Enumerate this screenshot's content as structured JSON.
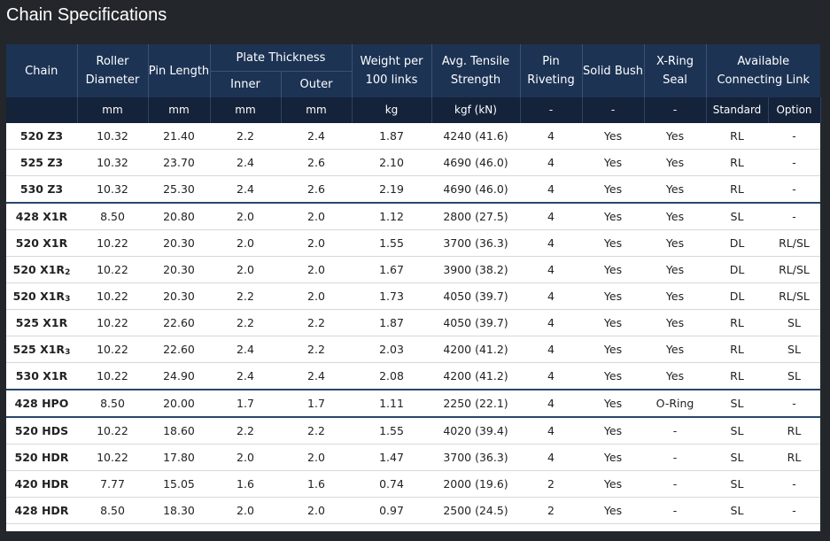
{
  "title": "Chain Specifications",
  "headers": {
    "chain": "Chain",
    "roller_diameter": "Roller Diameter",
    "pin_length": "Pin Length",
    "plate_thickness": "Plate Thickness",
    "inner": "Inner",
    "outer": "Outer",
    "weight": "Weight per 100 links",
    "tensile": "Avg. Tensile Strength",
    "pin_riveting": "Pin Riveting",
    "solid_bush": "Solid Bush",
    "xring_seal": "X-Ring Seal",
    "available_link": "Available Connecting Link"
  },
  "units": [
    "mm",
    "mm",
    "mm",
    "mm",
    "kg",
    "kgf (kN)",
    "-",
    "-",
    "-",
    "Standard",
    "Option"
  ],
  "rows": [
    {
      "name": "520 Z3",
      "sub": "",
      "roller": "10.32",
      "pin": "21.40",
      "inner": "2.2",
      "outer": "2.4",
      "weight": "1.87",
      "tensile": "4240 (41.6)",
      "riveting": "4",
      "bush": "Yes",
      "seal": "Yes",
      "std": "RL",
      "opt": "-"
    },
    {
      "name": "525 Z3",
      "sub": "",
      "roller": "10.32",
      "pin": "23.70",
      "inner": "2.4",
      "outer": "2.6",
      "weight": "2.10",
      "tensile": "4690 (46.0)",
      "riveting": "4",
      "bush": "Yes",
      "seal": "Yes",
      "std": "RL",
      "opt": "-"
    },
    {
      "name": "530 Z3",
      "sub": "",
      "roller": "10.32",
      "pin": "25.30",
      "inner": "2.4",
      "outer": "2.6",
      "weight": "2.19",
      "tensile": "4690 (46.0)",
      "riveting": "4",
      "bush": "Yes",
      "seal": "Yes",
      "std": "RL",
      "opt": "-"
    },
    {
      "name": "428 X1R",
      "sub": "",
      "roller": "8.50",
      "pin": "20.80",
      "inner": "2.0",
      "outer": "2.0",
      "weight": "1.12",
      "tensile": "2800 (27.5)",
      "riveting": "4",
      "bush": "Yes",
      "seal": "Yes",
      "std": "SL",
      "opt": "-"
    },
    {
      "name": "520 X1R",
      "sub": "",
      "roller": "10.22",
      "pin": "20.30",
      "inner": "2.0",
      "outer": "2.0",
      "weight": "1.55",
      "tensile": "3700 (36.3)",
      "riveting": "4",
      "bush": "Yes",
      "seal": "Yes",
      "std": "DL",
      "opt": "RL/SL"
    },
    {
      "name": "520 X1R",
      "sub": "2",
      "roller": "10.22",
      "pin": "20.30",
      "inner": "2.0",
      "outer": "2.0",
      "weight": "1.67",
      "tensile": "3900 (38.2)",
      "riveting": "4",
      "bush": "Yes",
      "seal": "Yes",
      "std": "DL",
      "opt": "RL/SL"
    },
    {
      "name": "520 X1R",
      "sub": "3",
      "roller": "10.22",
      "pin": "20.30",
      "inner": "2.2",
      "outer": "2.0",
      "weight": "1.73",
      "tensile": "4050 (39.7)",
      "riveting": "4",
      "bush": "Yes",
      "seal": "Yes",
      "std": "DL",
      "opt": "RL/SL"
    },
    {
      "name": "525 X1R",
      "sub": "",
      "roller": "10.22",
      "pin": "22.60",
      "inner": "2.2",
      "outer": "2.2",
      "weight": "1.87",
      "tensile": "4050 (39.7)",
      "riveting": "4",
      "bush": "Yes",
      "seal": "Yes",
      "std": "RL",
      "opt": "SL"
    },
    {
      "name": "525 X1R",
      "sub": "3",
      "roller": "10.22",
      "pin": "22.60",
      "inner": "2.4",
      "outer": "2.2",
      "weight": "2.03",
      "tensile": "4200 (41.2)",
      "riveting": "4",
      "bush": "Yes",
      "seal": "Yes",
      "std": "RL",
      "opt": "SL"
    },
    {
      "name": "530 X1R",
      "sub": "",
      "roller": "10.22",
      "pin": "24.90",
      "inner": "2.4",
      "outer": "2.4",
      "weight": "2.08",
      "tensile": "4200 (41.2)",
      "riveting": "4",
      "bush": "Yes",
      "seal": "Yes",
      "std": "RL",
      "opt": "SL"
    },
    {
      "name": "428 HPO",
      "sub": "",
      "roller": "8.50",
      "pin": "20.00",
      "inner": "1.7",
      "outer": "1.7",
      "weight": "1.11",
      "tensile": "2250 (22.1)",
      "riveting": "4",
      "bush": "Yes",
      "seal": "O-Ring",
      "std": "SL",
      "opt": "-"
    },
    {
      "name": "520 HDS",
      "sub": "",
      "roller": "10.22",
      "pin": "18.60",
      "inner": "2.2",
      "outer": "2.2",
      "weight": "1.55",
      "tensile": "4020 (39.4)",
      "riveting": "4",
      "bush": "Yes",
      "seal": "-",
      "std": "SL",
      "opt": "RL"
    },
    {
      "name": "520 HDR",
      "sub": "",
      "roller": "10.22",
      "pin": "17.80",
      "inner": "2.0",
      "outer": "2.0",
      "weight": "1.47",
      "tensile": "3700 (36.3)",
      "riveting": "4",
      "bush": "Yes",
      "seal": "-",
      "std": "SL",
      "opt": "RL"
    },
    {
      "name": "420 HDR",
      "sub": "",
      "roller": "7.77",
      "pin": "15.05",
      "inner": "1.6",
      "outer": "1.6",
      "weight": "0.74",
      "tensile": "2000 (19.6)",
      "riveting": "2",
      "bush": "Yes",
      "seal": "-",
      "std": "SL",
      "opt": "-"
    },
    {
      "name": "428 HDR",
      "sub": "",
      "roller": "8.50",
      "pin": "18.30",
      "inner": "2.0",
      "outer": "2.0",
      "weight": "0.97",
      "tensile": "2500 (24.5)",
      "riveting": "2",
      "bush": "Yes",
      "seal": "-",
      "std": "SL",
      "opt": "-"
    }
  ]
}
